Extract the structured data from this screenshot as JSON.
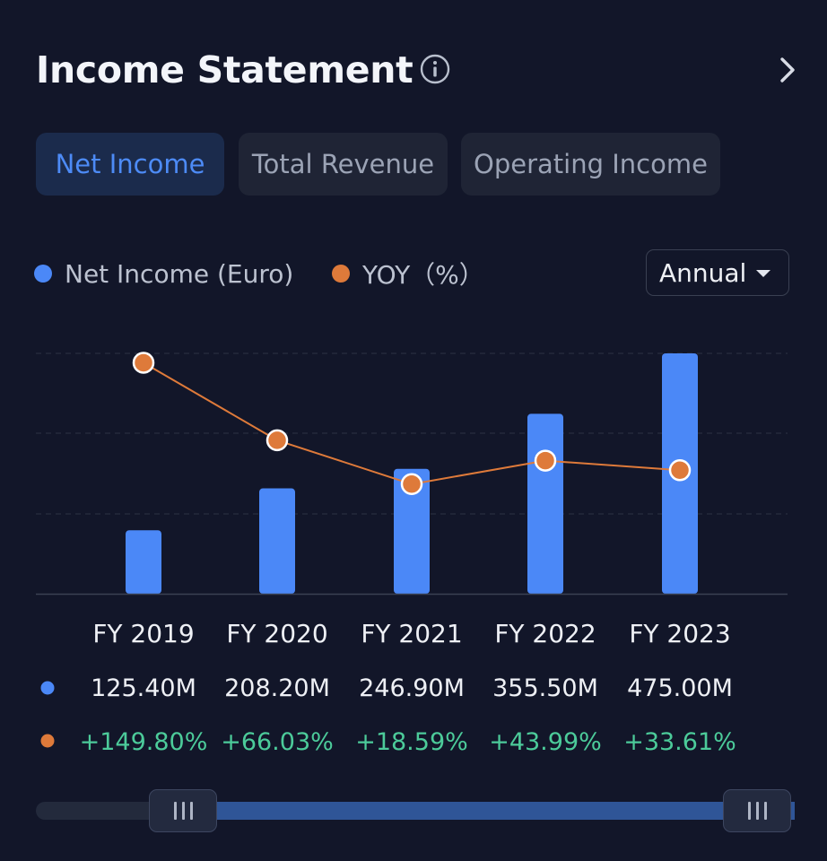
{
  "header": {
    "title": "Income Statement",
    "info_icon": "info-circle-icon",
    "next_icon": "chevron-right-icon"
  },
  "tabs": [
    {
      "label": "Net Income",
      "active": true
    },
    {
      "label": "Total Revenue",
      "active": false
    },
    {
      "label": "Operating Income",
      "active": false
    }
  ],
  "legend": {
    "bars_label": "Net Income (Euro)",
    "line_label": "YOY（%）"
  },
  "period": {
    "value": "Annual"
  },
  "colors": {
    "bar": "#4b88f7",
    "line": "#de7a3a",
    "positive": "#4ccb9a",
    "tab_active_bg": "#1b2b4c",
    "tab_active_text": "#4d8bf6",
    "background": "#121629"
  },
  "chart_data": {
    "type": "bar",
    "categories": [
      "FY 2019",
      "FY 2020",
      "FY 2021",
      "FY 2022",
      "FY 2023"
    ],
    "series": [
      {
        "name": "Net Income (Euro)",
        "type": "bar",
        "values": [
          125.4,
          208.2,
          246.9,
          355.5,
          475.0
        ],
        "display": [
          "125.40M",
          "208.20M",
          "246.90M",
          "355.50M",
          "475.00M"
        ]
      },
      {
        "name": "YOY（%）",
        "type": "line",
        "values": [
          149.8,
          66.03,
          18.59,
          43.99,
          33.61
        ],
        "display": [
          "+149.80%",
          "+66.03%",
          "+18.59%",
          "+43.99%",
          "+33.61%"
        ]
      }
    ],
    "ylim_bars": [
      0,
      475
    ],
    "ylim_line": [
      -100,
      160
    ],
    "grid": true,
    "legend_position": "top-left"
  },
  "range_slider": {
    "start": 0.15,
    "end": 1.0
  }
}
